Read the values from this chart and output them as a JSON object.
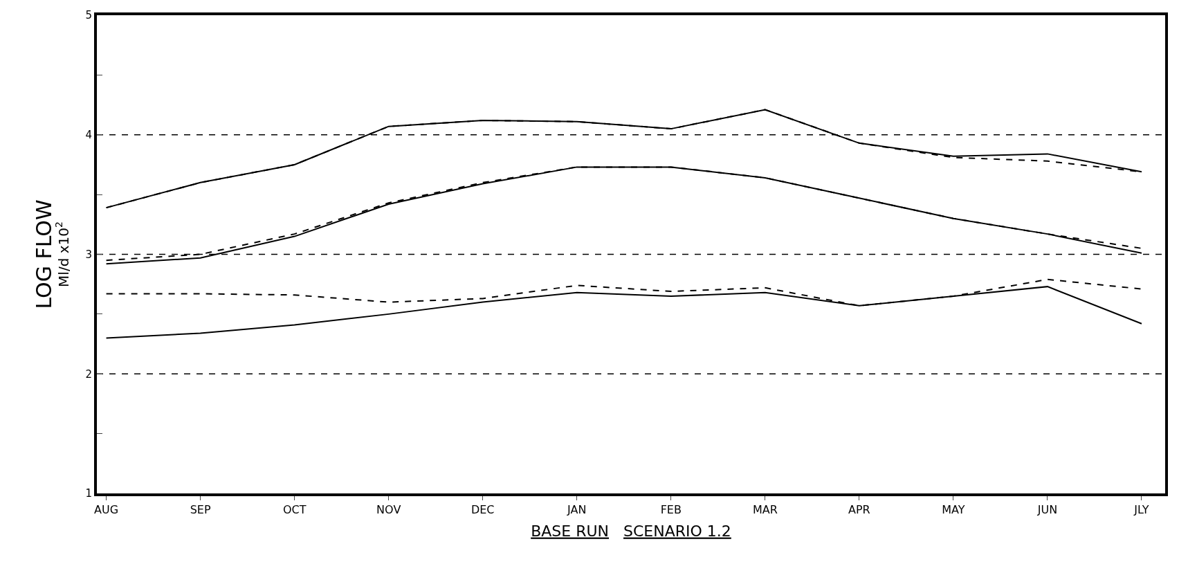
{
  "chart_data": {
    "type": "line",
    "xlabel": "BASE RUN   SCENARIO 1.2",
    "ylabel": "LOG FLOW\nMl/d x10$^{2}$",
    "categories": [
      "AUG",
      "SEP",
      "OCT",
      "NOV",
      "DEC",
      "JAN",
      "FEB",
      "MAR",
      "APR",
      "MAY",
      "JUN",
      "JLY"
    ],
    "series": [
      {
        "color": "#000000",
        "line_style": "solid",
        "values": [
          3.39,
          3.6,
          3.75,
          4.07,
          4.12,
          4.11,
          4.05,
          4.21,
          3.93,
          3.82,
          3.84,
          3.69
        ]
      },
      {
        "color": "#000000",
        "line_style": "dashed",
        "values": [
          3.39,
          3.6,
          3.75,
          4.07,
          4.12,
          4.11,
          4.05,
          4.21,
          3.93,
          3.81,
          3.78,
          3.69
        ]
      },
      {
        "color": "#000000",
        "line_style": "solid",
        "values": [
          2.92,
          2.97,
          3.15,
          3.42,
          3.59,
          3.73,
          3.73,
          3.64,
          3.47,
          3.3,
          3.17,
          3.01
        ]
      },
      {
        "color": "#000000",
        "line_style": "dashed",
        "values": [
          2.95,
          3.0,
          3.17,
          3.43,
          3.6,
          3.73,
          3.73,
          3.64,
          3.47,
          3.3,
          3.17,
          3.05
        ]
      },
      {
        "color": "#000000",
        "line_style": "solid",
        "values": [
          2.3,
          2.34,
          2.41,
          2.5,
          2.6,
          2.68,
          2.65,
          2.68,
          2.57,
          2.65,
          2.73,
          2.42
        ]
      },
      {
        "color": "#000000",
        "line_style": "dashed",
        "values": [
          2.67,
          2.67,
          2.66,
          2.6,
          2.63,
          2.74,
          2.69,
          2.72,
          2.57,
          2.65,
          2.79,
          2.71
        ]
      }
    ],
    "ylim": [
      1,
      5
    ],
    "yticks": [
      1,
      {
        "value": 1.5,
        "label": null
      },
      2,
      {
        "value": 2.5,
        "label": null
      },
      3,
      {
        "value": 3.5,
        "label": null
      },
      4,
      {
        "value": 4.5,
        "label": null
      },
      5
    ],
    "ref_lines": [
      {
        "axis": "y",
        "value": 2,
        "color": "#000000",
        "line_style": "dashed"
      },
      {
        "axis": "y",
        "value": 3,
        "color": "#000000",
        "line_style": "dashed"
      },
      {
        "axis": "y",
        "value": 4,
        "color": "#000000",
        "line_style": "dashed"
      }
    ],
    "grid": false,
    "marker": "none"
  }
}
